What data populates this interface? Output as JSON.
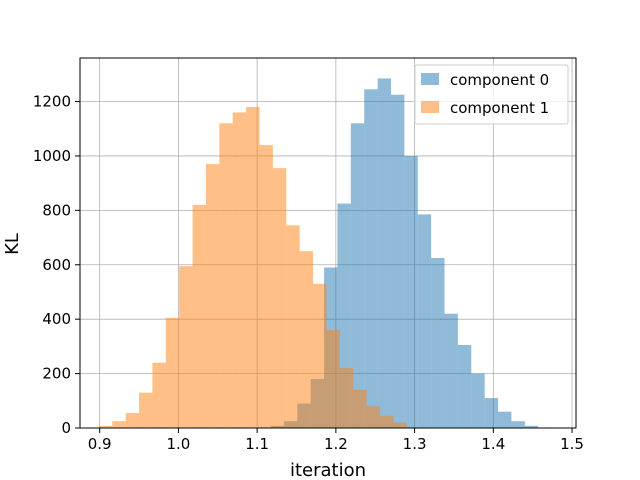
{
  "chart_data": {
    "type": "histogram",
    "xlabel": "iteration",
    "ylabel": "KL",
    "xlim": [
      0.875,
      1.505
    ],
    "ylim": [
      0,
      1360
    ],
    "xticks": [
      0.9,
      1.0,
      1.1,
      1.2,
      1.3,
      1.4,
      1.5
    ],
    "xtick_labels": [
      "0.9",
      "1.0",
      "1.1",
      "1.2",
      "1.3",
      "1.4",
      "1.5"
    ],
    "yticks": [
      0,
      200,
      400,
      600,
      800,
      1000,
      1200
    ],
    "ytick_labels": [
      "0",
      "200",
      "400",
      "600",
      "800",
      "1000",
      "1200"
    ],
    "grid": true,
    "legend_position": "top-right",
    "bar_alpha": 0.5,
    "series": [
      {
        "name": "component 0",
        "color": "#1f77b4",
        "bin_width": 0.017,
        "bins": [
          [
            1.117,
            1.134,
            8
          ],
          [
            1.134,
            1.151,
            25
          ],
          [
            1.151,
            1.168,
            90
          ],
          [
            1.168,
            1.185,
            180
          ],
          [
            1.185,
            1.202,
            590
          ],
          [
            1.202,
            1.219,
            825
          ],
          [
            1.219,
            1.236,
            1120
          ],
          [
            1.236,
            1.253,
            1245
          ],
          [
            1.253,
            1.27,
            1285
          ],
          [
            1.27,
            1.287,
            1225
          ],
          [
            1.287,
            1.304,
            1000
          ],
          [
            1.304,
            1.321,
            785
          ],
          [
            1.321,
            1.338,
            625
          ],
          [
            1.338,
            1.355,
            420
          ],
          [
            1.355,
            1.372,
            305
          ],
          [
            1.372,
            1.389,
            200
          ],
          [
            1.389,
            1.406,
            110
          ],
          [
            1.406,
            1.423,
            60
          ],
          [
            1.423,
            1.44,
            25
          ],
          [
            1.44,
            1.457,
            8
          ],
          [
            1.457,
            1.474,
            2
          ]
        ]
      },
      {
        "name": "component 1",
        "color": "#ff7f0e",
        "bin_width": 0.017,
        "bins": [
          [
            0.899,
            0.916,
            8
          ],
          [
            0.916,
            0.933,
            25
          ],
          [
            0.933,
            0.95,
            55
          ],
          [
            0.95,
            0.967,
            130
          ],
          [
            0.967,
            0.984,
            240
          ],
          [
            0.984,
            1.001,
            405
          ],
          [
            1.001,
            1.018,
            595
          ],
          [
            1.018,
            1.035,
            820
          ],
          [
            1.035,
            1.052,
            970
          ],
          [
            1.052,
            1.069,
            1120
          ],
          [
            1.069,
            1.086,
            1160
          ],
          [
            1.086,
            1.103,
            1180
          ],
          [
            1.103,
            1.12,
            1040
          ],
          [
            1.12,
            1.137,
            955
          ],
          [
            1.137,
            1.154,
            745
          ],
          [
            1.154,
            1.171,
            650
          ],
          [
            1.171,
            1.188,
            530
          ],
          [
            1.188,
            1.205,
            360
          ],
          [
            1.205,
            1.222,
            220
          ],
          [
            1.222,
            1.239,
            140
          ],
          [
            1.239,
            1.256,
            80
          ],
          [
            1.256,
            1.273,
            45
          ],
          [
            1.273,
            1.29,
            20
          ]
        ]
      }
    ]
  }
}
